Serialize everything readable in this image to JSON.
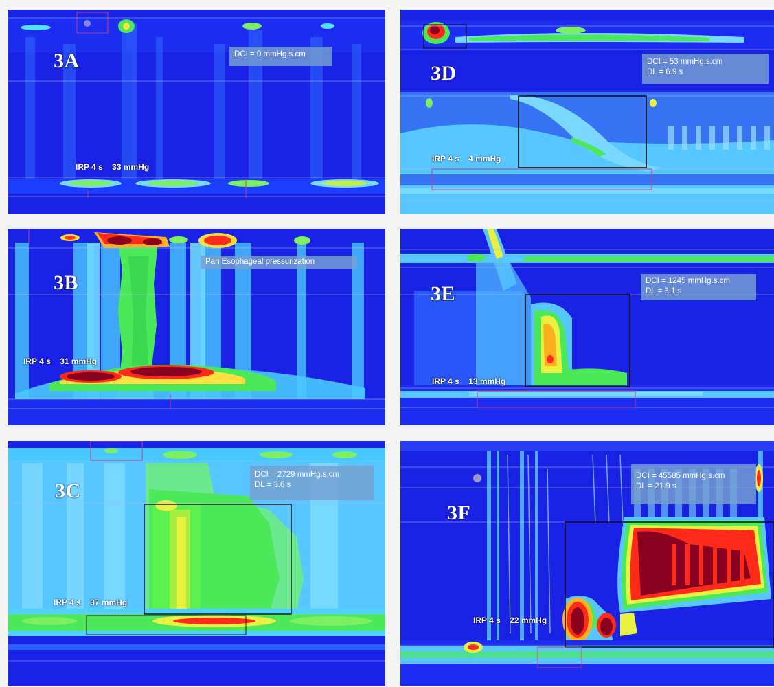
{
  "panels": {
    "a": {
      "label": "3A",
      "box": "DCI = 0  mmHg.s.cm",
      "irp": "IRP 4 s    33 mmHg"
    },
    "b": {
      "label": "3B",
      "box": "Pan Esophageal pressurization",
      "irp": "IRP 4 s    31 mmHg"
    },
    "c": {
      "label": "3C",
      "dci": "DCI = 2729  mmHg.s.cm",
      "dl": "DL = 3.6 s",
      "irp": "IRP 4 s    37 mmHg"
    },
    "d": {
      "label": "3D",
      "dci": "DCI = 53  mmHg.s.cm",
      "dl": "DL = 6.9 s",
      "irp": "IRP 4 s    4 mmHg"
    },
    "e": {
      "label": "3E",
      "dci": "DCI = 1245 mmHg.s.cm",
      "dl": "DL = 3.1 s",
      "irp": "IRP 4 s    13 mmHg"
    },
    "f": {
      "label": "3F",
      "dci": "DCI = 45585 mmHg.s.cm",
      "dl": "DL = 21.9 s",
      "irp": "IRP 4 s    22 mmHg"
    }
  },
  "colors": {
    "background": "#1a22e6",
    "low": "#1a22e6",
    "mid": "#7ad8ff",
    "green": "#4be85a",
    "high": "#ff2a1a",
    "max": "#8a0020",
    "box_outline": "#111111",
    "guide_line": "#c04080"
  }
}
